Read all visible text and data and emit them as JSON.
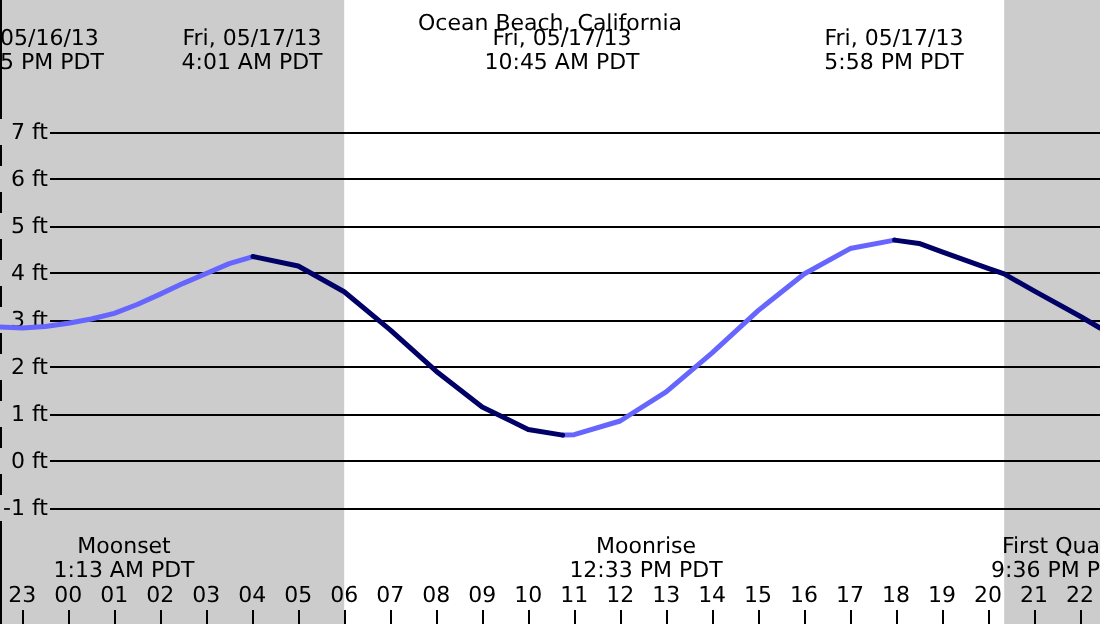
{
  "chart_data": {
    "type": "line",
    "title": "Ocean Beach, California",
    "xlim": [
      "--05-16T22:31",
      "--05-17T22:26"
    ],
    "xticks": [
      {
        "value": "--05-16T23:00",
        "label": "23"
      },
      {
        "value": "--05-17T00:00",
        "label": "00"
      },
      {
        "value": "--05-17T01:00",
        "label": "01"
      },
      {
        "value": "--05-17T02:00",
        "label": "02"
      },
      {
        "value": "--05-17T03:00",
        "label": "03"
      },
      {
        "value": "--05-17T04:00",
        "label": "04"
      },
      {
        "value": "--05-17T05:00",
        "label": "05"
      },
      {
        "value": "--05-17T06:00",
        "label": "06"
      },
      {
        "value": "--05-17T07:00",
        "label": "07"
      },
      {
        "value": "--05-17T08:00",
        "label": "08"
      },
      {
        "value": "--05-17T09:00",
        "label": "09"
      },
      {
        "value": "--05-17T10:00",
        "label": "10"
      },
      {
        "value": "--05-17T11:00",
        "label": "11"
      },
      {
        "value": "--05-17T12:00",
        "label": "12"
      },
      {
        "value": "--05-17T13:00",
        "label": "13"
      },
      {
        "value": "--05-17T14:00",
        "label": "14"
      },
      {
        "value": "--05-17T15:00",
        "label": "15"
      },
      {
        "value": "--05-17T16:00",
        "label": "16"
      },
      {
        "value": "--05-17T17:00",
        "label": "17"
      },
      {
        "value": "--05-17T18:00",
        "label": "18"
      },
      {
        "value": "--05-17T19:00",
        "label": "19"
      },
      {
        "value": "--05-17T20:00",
        "label": "20"
      },
      {
        "value": "--05-17T21:00",
        "label": "21"
      },
      {
        "value": "--05-17T22:00",
        "label": "22"
      }
    ],
    "ylim": [
      -3.47,
      9.81
    ],
    "yticks": [
      {
        "value": -1,
        "label": "-1 ft"
      },
      {
        "value": 0,
        "label": "0 ft"
      },
      {
        "value": 1,
        "label": "1 ft"
      },
      {
        "value": 2,
        "label": "2 ft"
      },
      {
        "value": 3,
        "label": "3 ft"
      },
      {
        "value": 4,
        "label": "4 ft"
      },
      {
        "value": 5,
        "label": "5 ft"
      },
      {
        "value": 6,
        "label": "6 ft"
      },
      {
        "value": 7,
        "label": "7 ft"
      }
    ],
    "grid": "y",
    "marker": "none",
    "line_style": "solid",
    "series": [
      {
        "color": "#6666ff",
        "x": [
          "--05-16T22:31",
          "--05-16T23:00",
          "--05-16T23:30",
          "--05-17T00:00",
          "--05-17T00:30",
          "--05-17T01:00",
          "--05-17T01:30",
          "--05-17T02:00",
          "--05-17T02:30",
          "--05-17T03:00",
          "--05-17T03:30",
          "--05-17T04:01",
          "--05-17T07:00",
          "--05-17T10:45",
          "--05-17T11:00",
          "--05-17T12:00",
          "--05-17T13:00",
          "--05-17T14:00",
          "--05-17T15:00",
          "--05-17T16:00",
          "--05-17T17:00",
          "--05-17T17:58"
        ],
        "values": [
          2.85,
          2.83,
          2.86,
          2.93,
          3.02,
          3.14,
          3.33,
          3.55,
          3.78,
          3.99,
          4.2,
          4.35,
          null,
          0.55,
          0.56,
          0.85,
          1.47,
          2.3,
          3.2,
          3.98,
          4.52,
          4.7
        ]
      },
      {
        "color": "#000066",
        "x": [
          "--05-17T04:01",
          "--05-17T05:00",
          "--05-17T06:00",
          "--05-17T07:00",
          "--05-17T08:00",
          "--05-17T09:00",
          "--05-17T10:00",
          "--05-17T10:45",
          "--05-17T14:00",
          "--05-17T17:58",
          "--05-17T18:30",
          "--05-17T19:00",
          "--05-17T20:00",
          "--05-17T20:21",
          "--05-17T21:00",
          "--05-17T22:00",
          "--05-17T22:26"
        ],
        "values": [
          4.35,
          4.15,
          3.6,
          2.79,
          1.91,
          1.15,
          0.67,
          0.55,
          null,
          4.7,
          4.63,
          4.45,
          4.1,
          3.98,
          3.62,
          3.08,
          2.83
        ]
      }
    ],
    "bands": [
      {
        "axis": "x",
        "from": "--05-16T22:31",
        "to": "--05-17T06:00",
        "color": "#cccccc"
      },
      {
        "axis": "x",
        "from": "--05-17T20:21",
        "to": "--05-17T22:26",
        "color": "#cccccc"
      }
    ],
    "annotations": [
      "05/16/13\n5 PM PDT",
      "Fri, 05/17/13\n4:01 AM PDT",
      "Fri, 05/17/13\n10:45 AM PDT",
      "Fri, 05/17/13\n5:58 PM PDT",
      "Moonset\n1:13 AM PDT",
      "Moonrise\n12:33 PM PDT",
      "First Qua\n9:36 PM P"
    ]
  }
}
